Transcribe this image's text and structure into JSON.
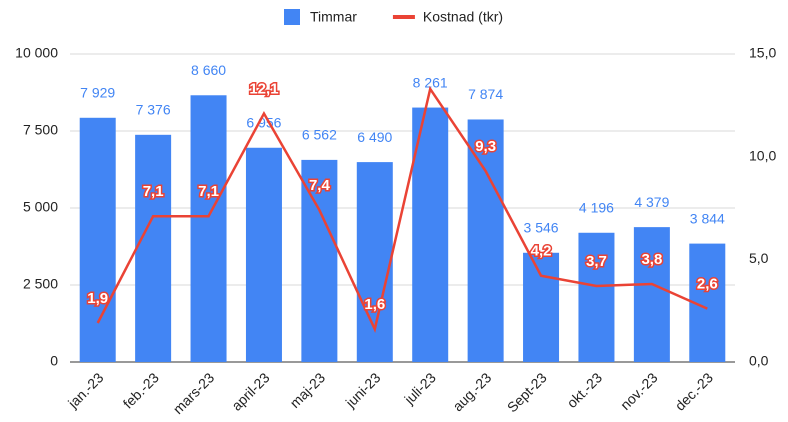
{
  "chart_data": {
    "type": "bar",
    "categories": [
      "jan.-23",
      "feb.-23",
      "mars-23",
      "april-23",
      "maj-23",
      "juni-23",
      "juli-23",
      "aug.-23",
      "Sept-23",
      "okt.-23",
      "nov.-23",
      "dec.-23"
    ],
    "series": [
      {
        "name": "Timmar",
        "type": "bar",
        "color": "#4285f4",
        "values": [
          7929,
          7376,
          8660,
          6956,
          6562,
          6490,
          8261,
          7874,
          3546,
          4196,
          4379,
          3844
        ],
        "value_labels": [
          "7 929",
          "7 376",
          "8 660",
          "6 956",
          "6 562",
          "6 490",
          "8 261",
          "7 874",
          "3 546",
          "4 196",
          "4 379",
          "3 844"
        ]
      },
      {
        "name": "Kostnad (tkr)",
        "type": "line",
        "axis": "y2",
        "color": "#ea4335",
        "values": [
          1.9,
          7.1,
          7.1,
          12.1,
          7.4,
          1.6,
          13.3,
          9.3,
          4.2,
          3.7,
          3.8,
          2.6
        ],
        "value_labels": [
          "1,9",
          "7,1",
          "7,1",
          "12,1",
          "7,4",
          "1,6",
          null,
          "9,3",
          "4,2",
          "3,7",
          "3,8",
          "2,6"
        ]
      }
    ],
    "ylim": [
      0,
      10000
    ],
    "yticks": [
      0,
      {
        "value": 2500,
        "label": "2 500"
      },
      {
        "value": 5000,
        "label": "5 000"
      },
      {
        "value": 7500,
        "label": "7 500"
      },
      {
        "value": 10000,
        "label": "10 000"
      }
    ],
    "y2lim": [
      0,
      15
    ],
    "y2ticks": [
      {
        "value": 0,
        "label": "0,0"
      },
      {
        "value": 5,
        "label": "5,0"
      },
      {
        "value": 10,
        "label": "10,0"
      },
      {
        "value": 15,
        "label": "15,0"
      }
    ],
    "grid": true,
    "legend": "top"
  }
}
